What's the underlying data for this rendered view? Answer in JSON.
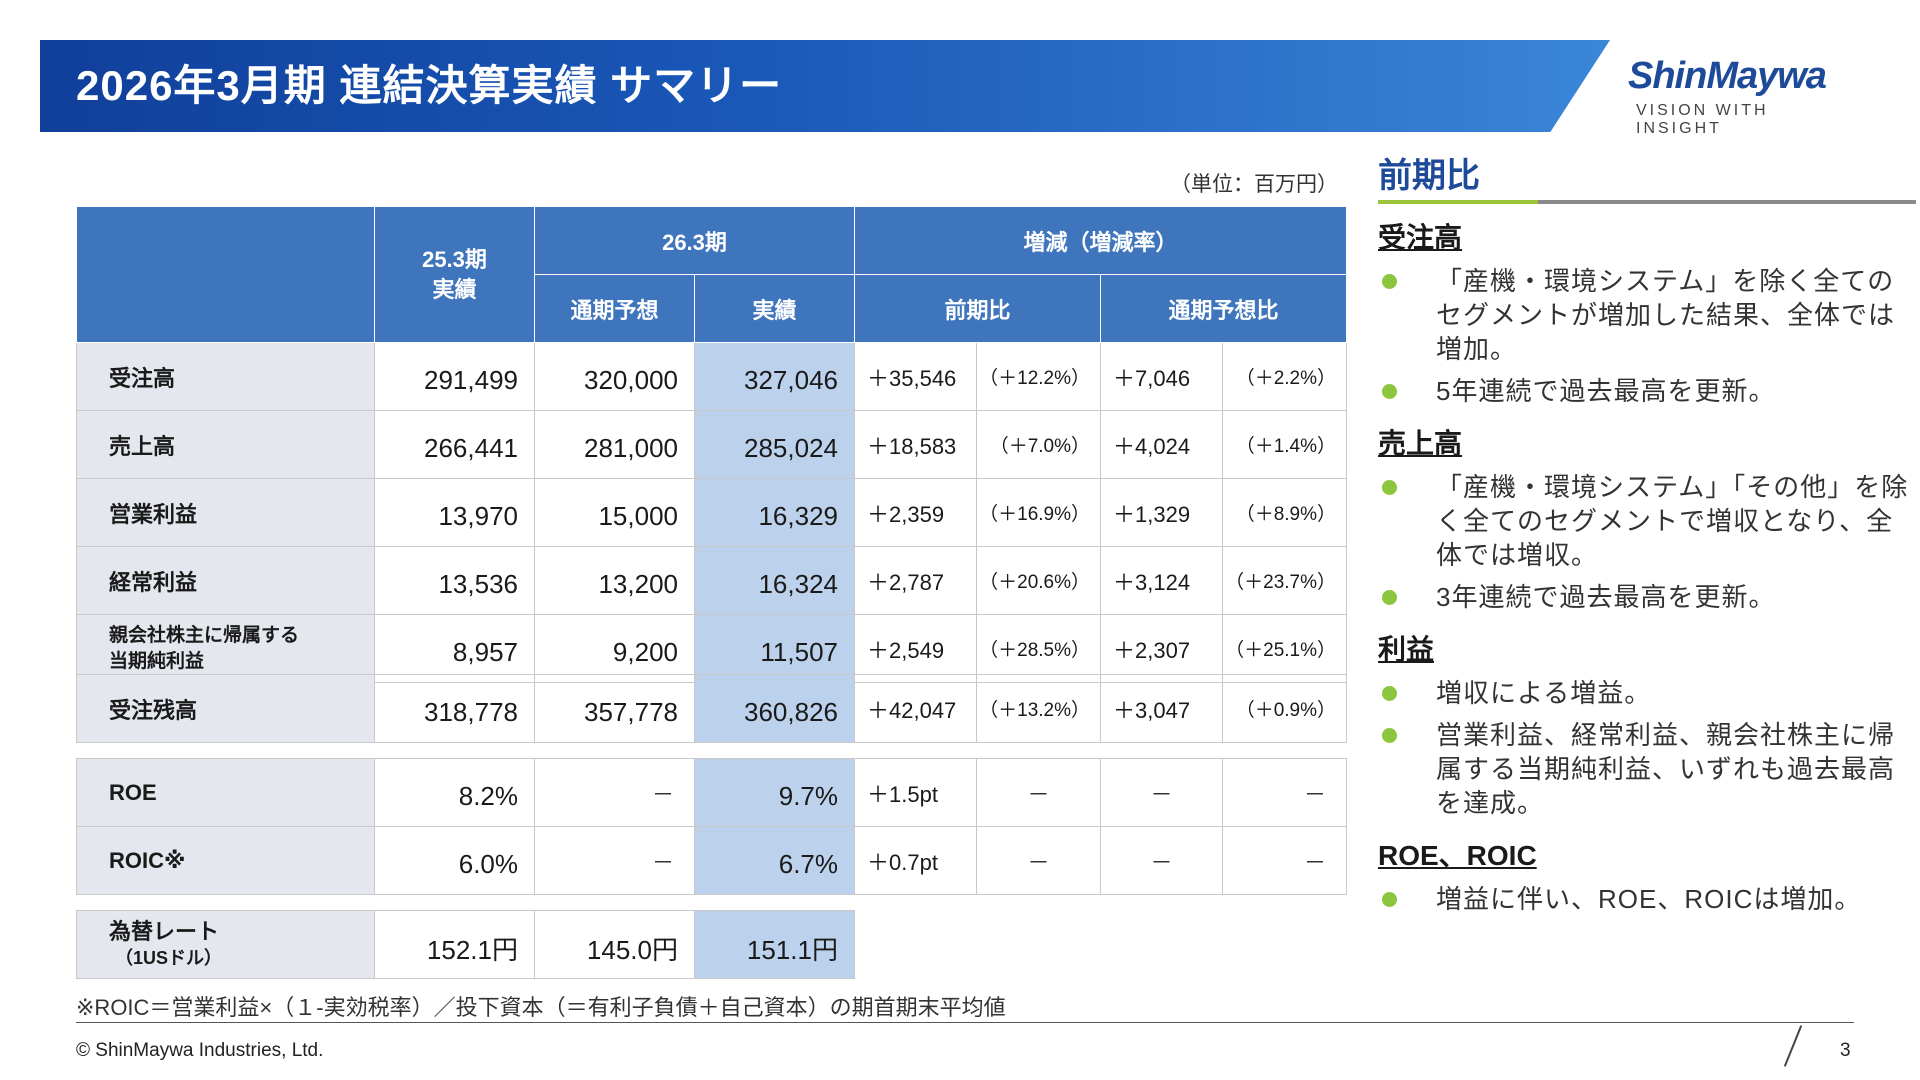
{
  "header": {
    "title": "2026年3月期 連結決算実績 サマリー"
  },
  "logo": {
    "name": "ShinMaywa",
    "tagline": "VISION WITH INSIGHT"
  },
  "unit_note": "（単位：百万円）",
  "table": {
    "headers": {
      "col_prev": "25.3期\n実績",
      "col_cur_group": "26.3期",
      "col_cur_forecast": "通期予想",
      "col_cur_actual": "実績",
      "col_change_group": "増減（増減率）",
      "col_change_yoy": "前期比",
      "col_change_forecast": "通期予想比"
    },
    "rows": [
      {
        "label": "受注高",
        "prev": "291,499",
        "forecast": "320,000",
        "actual": "327,046",
        "yoy": "＋35,546",
        "yoy_rate": "（＋12.2%）",
        "vs_fc": "＋7,046",
        "vs_fc_rate": "（＋2.2%）"
      },
      {
        "label": "売上高",
        "prev": "266,441",
        "forecast": "281,000",
        "actual": "285,024",
        "yoy": "＋18,583",
        "yoy_rate": "（＋7.0%）",
        "vs_fc": "＋4,024",
        "vs_fc_rate": "（＋1.4%）"
      },
      {
        "label": "営業利益",
        "prev": "13,970",
        "forecast": "15,000",
        "actual": "16,329",
        "yoy": "＋2,359",
        "yoy_rate": "（＋16.9%）",
        "vs_fc": "＋1,329",
        "vs_fc_rate": "（＋8.9%）"
      },
      {
        "label": "経常利益",
        "prev": "13,536",
        "forecast": "13,200",
        "actual": "16,324",
        "yoy": "＋2,787",
        "yoy_rate": "（＋20.6%）",
        "vs_fc": "＋3,124",
        "vs_fc_rate": "（＋23.7%）"
      },
      {
        "label": "親会社株主に帰属する\n当期純利益",
        "prev": "8,957",
        "forecast": "9,200",
        "actual": "11,507",
        "yoy": "＋2,549",
        "yoy_rate": "（＋28.5%）",
        "vs_fc": "＋2,307",
        "vs_fc_rate": "（＋25.1%）"
      }
    ],
    "backlog": {
      "label": "受注残高",
      "prev": "318,778",
      "forecast": "357,778",
      "actual": "360,826",
      "yoy": "＋42,047",
      "yoy_rate": "（＋13.2%）",
      "vs_fc": "＋3,047",
      "vs_fc_rate": "（＋0.9%）"
    },
    "ratios": [
      {
        "label": "ROE",
        "prev": "8.2%",
        "forecast": "－",
        "actual": "9.7%",
        "yoy": "＋1.5pt",
        "yoy_rate": "－",
        "vs_fc": "－",
        "vs_fc_rate": "－"
      },
      {
        "label": "ROIC※",
        "prev": "6.0%",
        "forecast": "－",
        "actual": "6.7%",
        "yoy": "＋0.7pt",
        "yoy_rate": "－",
        "vs_fc": "－",
        "vs_fc_rate": "－"
      }
    ],
    "fx": {
      "label": "為替レート",
      "sublabel": "（1USドル）",
      "prev": "152.1円",
      "forecast": "145.0円",
      "actual": "151.1円"
    }
  },
  "footnote": "※ROIC＝営業利益×（１-実効税率）／投下資本（＝有利子負債＋自己資本）の期首期末平均値",
  "copyright": "© ShinMaywa Industries, Ltd.",
  "page_number": "3",
  "panel": {
    "title": "前期比",
    "sections": [
      {
        "heading": "受注高",
        "bullets": [
          "「産機・環境システム」を除く全てのセグメントが増加した結果、全体では増加。",
          "5年連続で過去最高を更新。"
        ]
      },
      {
        "heading": "売上高",
        "bullets": [
          "「産機・環境システム」「その他」を除く全てのセグメントで増収となり、全体では増収。",
          "3年連続で過去最高を更新。"
        ]
      },
      {
        "heading": "利益",
        "bullets": [
          "増収による増益。",
          "営業利益、経常利益、親会社株主に帰属する当期純利益、いずれも過去最高を達成。"
        ]
      },
      {
        "heading": "ROE、ROIC",
        "bullets": [
          "増益に伴い、ROE、ROICは増加。"
        ]
      }
    ]
  },
  "colors": {
    "header_blue": "#1a58b8",
    "table_header": "#3f75bc",
    "actual_col": "#bcd2ec",
    "label_bg": "#e4e8ee",
    "bullet_green": "#8cc63f",
    "panel_title": "#1e4a9a"
  }
}
